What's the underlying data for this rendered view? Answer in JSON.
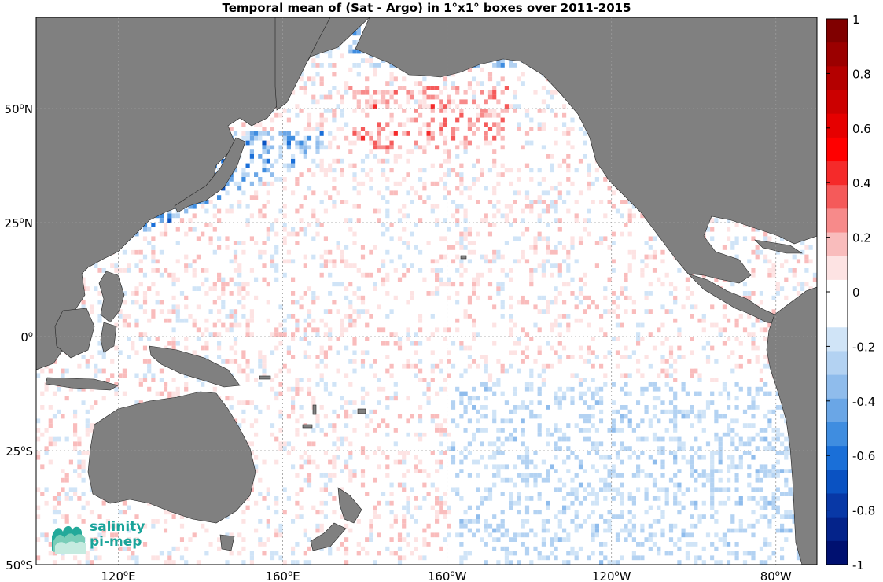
{
  "title": "Temporal mean of (Sat - Argo) in 1°x1° boxes over 2011-2015",
  "map": {
    "lon_range": [
      100,
      290
    ],
    "lat_range": [
      -50,
      70
    ],
    "x_ticks": [
      {
        "value": 120,
        "label": "120",
        "suffix": "E"
      },
      {
        "value": 160,
        "label": "160",
        "suffix": "E"
      },
      {
        "value": 200,
        "label": "160",
        "suffix": "W"
      },
      {
        "value": 240,
        "label": "120",
        "suffix": "W"
      },
      {
        "value": 280,
        "label": "80",
        "suffix": "W"
      }
    ],
    "y_ticks": [
      {
        "value": 50,
        "label": "50",
        "suffix": "N"
      },
      {
        "value": 25,
        "label": "25",
        "suffix": "N"
      },
      {
        "value": 0,
        "label": "0",
        "suffix": ""
      },
      {
        "value": -25,
        "label": "25",
        "suffix": "S"
      },
      {
        "value": -50,
        "label": "50",
        "suffix": "S"
      }
    ],
    "grid": true,
    "land_color": "#808080",
    "no_data_color": "#ffffff"
  },
  "colorbar": {
    "min": -1,
    "max": 1,
    "ticks": [
      {
        "value": 1,
        "label": "1"
      },
      {
        "value": 0.8,
        "label": "0.8"
      },
      {
        "value": 0.6,
        "label": "0.6"
      },
      {
        "value": 0.4,
        "label": "0.4"
      },
      {
        "value": 0.2,
        "label": "0.2"
      },
      {
        "value": 0,
        "label": "0"
      },
      {
        "value": -0.2,
        "label": "-0.2"
      },
      {
        "value": -0.4,
        "label": "-0.4"
      },
      {
        "value": -0.6,
        "label": "-0.6"
      },
      {
        "value": -0.8,
        "label": "-0.8"
      },
      {
        "value": -1,
        "label": "-1"
      }
    ],
    "colors_high_to_low": [
      "#800000",
      "#9b0000",
      "#b40000",
      "#cc0000",
      "#e60000",
      "#ff0000",
      "#f52a2a",
      "#f55a5a",
      "#f78a8a",
      "#f9bcbc",
      "#fde3e3",
      "#ffffff",
      "#ffffff",
      "#d0e4f7",
      "#b3d2f2",
      "#8fbcec",
      "#6aa6e6",
      "#3f8de0",
      "#1a6fd8",
      "#0a52c2",
      "#0838a6",
      "#04238a",
      "#001070"
    ]
  },
  "logo": {
    "line1": "salinity",
    "line2": "pi-mep"
  }
}
